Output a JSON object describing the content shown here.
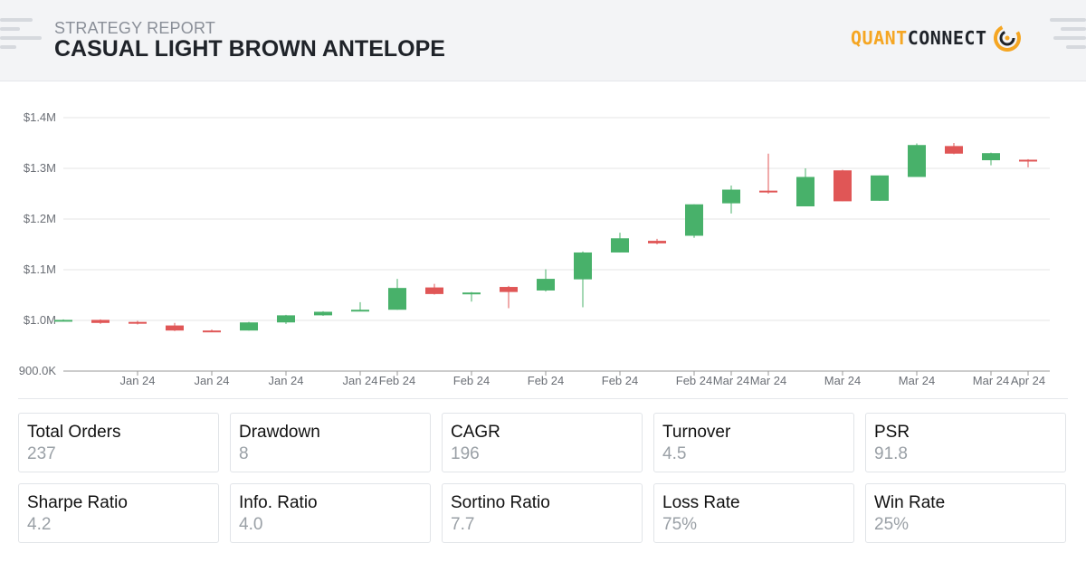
{
  "header": {
    "label": "STRATEGY REPORT",
    "title": "CASUAL LIGHT BROWN ANTELOPE",
    "logo_part1": "QUANT",
    "logo_part2": "CONNECT",
    "logo_icon": "quantconnect-logo-icon"
  },
  "colors": {
    "up": "#48b16a",
    "down": "#e05656",
    "grid": "#e6e6e6",
    "accent": "#f5a623"
  },
  "chart_data": {
    "type": "candlestick",
    "title": "",
    "xlabel": "",
    "ylabel": "",
    "ylim": [
      900000,
      1400000
    ],
    "ytick_values": [
      900000,
      1000000,
      1100000,
      1200000,
      1300000,
      1400000
    ],
    "ytick_labels": [
      "900.0K",
      "$1.0M",
      "$1.1M",
      "$1.2M",
      "$1.3M",
      "$1.4M"
    ],
    "xtick_labels": [
      "Jan 24",
      "Jan 24",
      "Jan 24",
      "Jan 24",
      "Feb 24",
      "Feb 24",
      "Feb 24",
      "Feb 24",
      "Feb 24",
      "Mar 24",
      "Mar 24",
      "Mar 24",
      "Mar 24",
      "Mar 24",
      "Apr 24"
    ],
    "xtick_index": [
      2,
      4,
      6,
      8,
      9,
      11,
      13,
      15,
      17,
      18,
      19,
      21,
      23,
      25,
      26
    ],
    "grid": true,
    "candles": [
      {
        "o": 1000000,
        "h": 1002000,
        "l": 998000,
        "c": 1001000
      },
      {
        "o": 1001000,
        "h": 1002000,
        "l": 993000,
        "c": 995000
      },
      {
        "o": 997000,
        "h": 999000,
        "l": 992000,
        "c": 994000
      },
      {
        "o": 990000,
        "h": 995000,
        "l": 979000,
        "c": 980000
      },
      {
        "o": 980000,
        "h": 982000,
        "l": 977000,
        "c": 978000
      },
      {
        "o": 980000,
        "h": 997000,
        "l": 980000,
        "c": 996000
      },
      {
        "o": 996000,
        "h": 1011000,
        "l": 993000,
        "c": 1010000
      },
      {
        "o": 1010000,
        "h": 1018000,
        "l": 1009000,
        "c": 1017000
      },
      {
        "o": 1018000,
        "h": 1036000,
        "l": 1018000,
        "c": 1021000
      },
      {
        "o": 1021000,
        "h": 1082000,
        "l": 1021000,
        "c": 1064000
      },
      {
        "o": 1065000,
        "h": 1072000,
        "l": 1051000,
        "c": 1052000
      },
      {
        "o": 1052000,
        "h": 1056000,
        "l": 1037000,
        "c": 1055000
      },
      {
        "o": 1066000,
        "h": 1068000,
        "l": 1024000,
        "c": 1056000
      },
      {
        "o": 1059000,
        "h": 1101000,
        "l": 1057000,
        "c": 1082000
      },
      {
        "o": 1081000,
        "h": 1136000,
        "l": 1026000,
        "c": 1134000
      },
      {
        "o": 1134000,
        "h": 1173000,
        "l": 1134000,
        "c": 1162000
      },
      {
        "o": 1157000,
        "h": 1161000,
        "l": 1150000,
        "c": 1152000
      },
      {
        "o": 1167000,
        "h": 1229000,
        "l": 1163000,
        "c": 1229000
      },
      {
        "o": 1231000,
        "h": 1266000,
        "l": 1211000,
        "c": 1258000
      },
      {
        "o": 1256000,
        "h": 1329000,
        "l": 1250000,
        "c": 1254000
      },
      {
        "o": 1225000,
        "h": 1300000,
        "l": 1225000,
        "c": 1283000
      },
      {
        "o": 1296000,
        "h": 1297000,
        "l": 1235000,
        "c": 1235000
      },
      {
        "o": 1236000,
        "h": 1286000,
        "l": 1236000,
        "c": 1286000
      },
      {
        "o": 1283000,
        "h": 1349000,
        "l": 1283000,
        "c": 1346000
      },
      {
        "o": 1344000,
        "h": 1350000,
        "l": 1328000,
        "c": 1329000
      },
      {
        "o": 1316000,
        "h": 1331000,
        "l": 1306000,
        "c": 1330000
      },
      {
        "o": 1317000,
        "h": 1318000,
        "l": 1302000,
        "c": 1314000
      }
    ]
  },
  "stats": [
    {
      "label": "Total Orders",
      "value": "237"
    },
    {
      "label": "Drawdown",
      "value": "8"
    },
    {
      "label": "CAGR",
      "value": "196"
    },
    {
      "label": "Turnover",
      "value": "4.5"
    },
    {
      "label": "PSR",
      "value": "91.8"
    },
    {
      "label": "Sharpe Ratio",
      "value": "4.2"
    },
    {
      "label": "Info. Ratio",
      "value": "4.0"
    },
    {
      "label": "Sortino Ratio",
      "value": "7.7"
    },
    {
      "label": "Loss Rate",
      "value": "75%"
    },
    {
      "label": "Win Rate",
      "value": "25%"
    }
  ]
}
